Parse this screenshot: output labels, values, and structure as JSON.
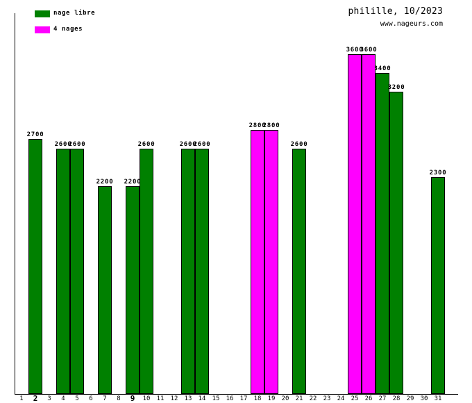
{
  "header": {
    "title": "philille, 10/2023",
    "website": "www.nageurs.com"
  },
  "legend": [
    {
      "label": "nage libre",
      "color": "#008000"
    },
    {
      "label": "4 nages",
      "color": "#ff00ff"
    }
  ],
  "chart_data": {
    "type": "bar",
    "title": "philille, 10/2023",
    "source_label": "www.nageurs.com",
    "xlabel": "",
    "ylabel": "",
    "x_range": [
      1,
      31
    ],
    "x_tick_labels": [
      "1",
      "2",
      "3",
      "4",
      "5",
      "6",
      "7",
      "8",
      "9",
      "10",
      "11",
      "12",
      "13",
      "14",
      "15",
      "16",
      "17",
      "18",
      "19",
      "20",
      "21",
      "22",
      "23",
      "24",
      "25",
      "26",
      "27",
      "28",
      "29",
      "30",
      "31"
    ],
    "bold_x_tick_labels": [
      "2",
      "9"
    ],
    "ylim": [
      0,
      3600
    ],
    "grid": false,
    "legend_position": "top-left",
    "bar_value_labels_shown": true,
    "bar_outline_color": "#000000",
    "background_color": "#ffffff",
    "series": [
      {
        "name": "nage libre",
        "color": "#008000",
        "points": [
          {
            "day": 2,
            "value": 2700
          },
          {
            "day": 4,
            "value": 2600
          },
          {
            "day": 5,
            "value": 2600
          },
          {
            "day": 7,
            "value": 2200
          },
          {
            "day": 9,
            "value": 2200
          },
          {
            "day": 10,
            "value": 2600
          },
          {
            "day": 13,
            "value": 2600
          },
          {
            "day": 14,
            "value": 2600
          },
          {
            "day": 21,
            "value": 2600
          },
          {
            "day": 27,
            "value": 3400
          },
          {
            "day": 28,
            "value": 3200
          },
          {
            "day": 31,
            "value": 2300
          }
        ]
      },
      {
        "name": "4 nages",
        "color": "#ff00ff",
        "points": [
          {
            "day": 18,
            "value": 2800
          },
          {
            "day": 19,
            "value": 2800
          },
          {
            "day": 25,
            "value": 3600
          },
          {
            "day": 26,
            "value": 3600
          }
        ]
      }
    ]
  }
}
